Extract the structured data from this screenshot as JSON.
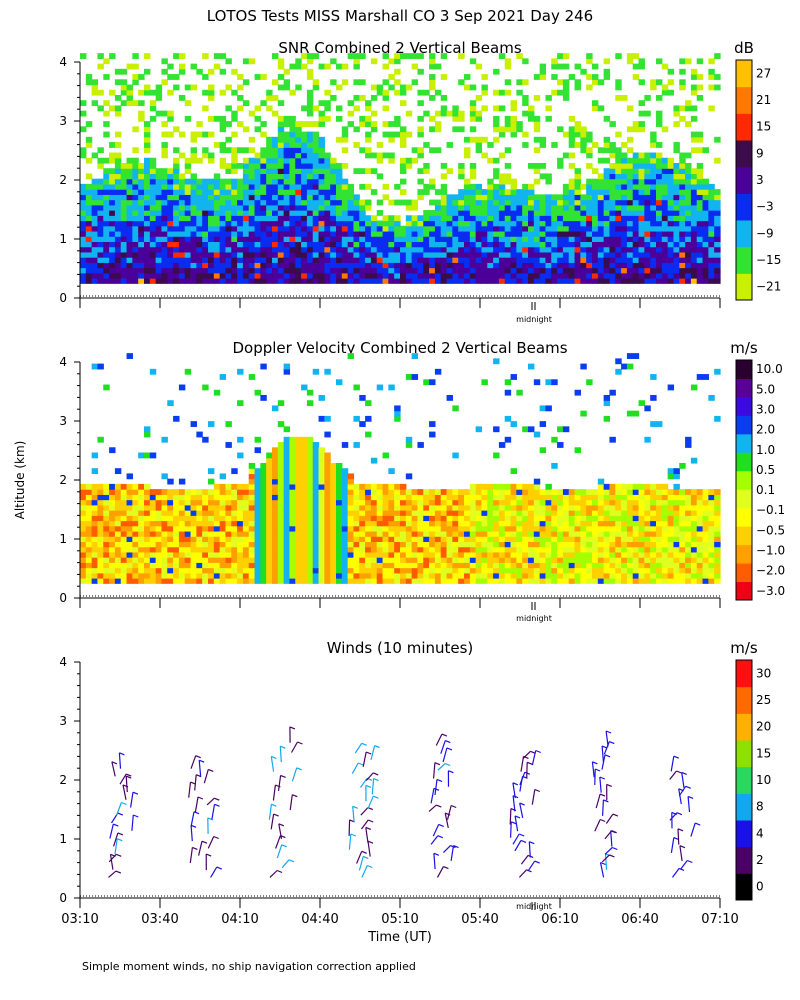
{
  "page": {
    "main_title": "LOTOS Tests MISS Marshall CO   3 Sep 2021 Day 246",
    "y_axis_label": "Altitude (km)",
    "x_axis_label": "Time (UT)",
    "footnote": "Simple moment winds, no ship navigation correction applied",
    "midnight_label": "midnight"
  },
  "colors": {
    "snr": [
      "#c8f000",
      "#33e333",
      "#12b4f0",
      "#0a2cf0",
      "#4b0099",
      "#3b0b4b",
      "#ff2a00",
      "#ff7800",
      "#ffc000"
    ],
    "doppler": [
      "#f00014",
      "#ff5c00",
      "#ff9f00",
      "#ffd000",
      "#ffff00",
      "#e1ff1e",
      "#a6ff00",
      "#1ee01e",
      "#12b4f0",
      "#0a3cf0",
      "#3a0ae0",
      "#5a0099",
      "#2a0030"
    ],
    "winds": [
      "#000000",
      "#4b0066",
      "#1a10e8",
      "#12a8f0",
      "#2ad860",
      "#8ee000",
      "#ffb000",
      "#ff6a00",
      "#ff1010"
    ]
  },
  "chart_data": [
    {
      "type": "heatmap",
      "title": "SNR Combined 2 Vertical Beams",
      "colorbar_unit": "dB",
      "colorbar_labels": [
        "27",
        "21",
        "15",
        "9",
        "3",
        "−3",
        "−9",
        "−15",
        "−21"
      ],
      "yticks": [
        "0",
        "1",
        "2",
        "3",
        "4"
      ],
      "ylim": [
        0,
        4
      ],
      "description_of_values": "SNR (dB) vs time and altitude",
      "variable": "snr_db"
    },
    {
      "type": "heatmap",
      "title": "Doppler Velocity Combined 2 Vertical Beams",
      "colorbar_unit": "m/s",
      "colorbar_labels": [
        "10.0",
        "5.0",
        "3.0",
        "2.0",
        "1.0",
        "0.5",
        "0.1",
        "−0.1",
        "−0.5",
        "−1.0",
        "−2.0",
        "−3.0"
      ],
      "yticks": [
        "0",
        "1",
        "2",
        "3",
        "4"
      ],
      "ylim": [
        0,
        4
      ],
      "variable": "doppler_velocity"
    },
    {
      "type": "scatter",
      "title": "Winds (10 minutes)",
      "colorbar_unit": "m/s",
      "colorbar_labels": [
        "30",
        "25",
        "20",
        "15",
        "10",
        "8",
        "4",
        "2",
        "0"
      ],
      "yticks": [
        "0",
        "1",
        "2",
        "3",
        "4"
      ],
      "ylim": [
        0,
        4
      ],
      "xticks": [
        "03:10",
        "03:40",
        "04:10",
        "04:40",
        "05:10",
        "05:40",
        "06:10",
        "06:40",
        "07:10"
      ],
      "profile_times_h": [
        3.42,
        3.92,
        4.42,
        4.92,
        5.42,
        5.92,
        6.42,
        6.92
      ],
      "variable": "wind_barbs"
    }
  ]
}
